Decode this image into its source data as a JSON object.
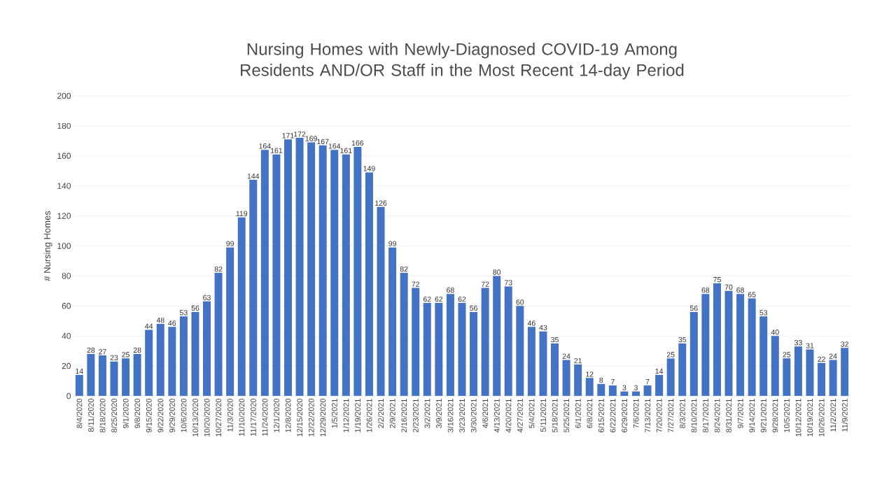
{
  "chart_data": {
    "type": "bar",
    "title": "Nursing Homes with Newly-Diagnosed COVID-19 Among Residents AND/OR Staff in the Most Recent 14-day Period",
    "ylabel": "# Nursing Homes",
    "categories": [
      "8/4/2020",
      "8/11/2020",
      "8/18/2020",
      "8/25/2020",
      "9/1/2020",
      "9/8/2020",
      "9/15/2020",
      "9/22/2020",
      "9/29/2020",
      "10/6/2020",
      "10/13/2020",
      "10/20/2020",
      "10/27/2020",
      "11/3/2020",
      "11/10/2020",
      "11/17/2020",
      "11/24/2020",
      "12/1/2020",
      "12/8/2020",
      "12/15/2020",
      "12/22/2020",
      "12/29/2020",
      "1/5/2021",
      "1/12/2021",
      "1/19/2021",
      "1/26/2021",
      "2/2/2021",
      "2/9/2021",
      "2/16/2021",
      "2/23/2021",
      "3/2/2021",
      "3/9/2021",
      "3/16/2021",
      "3/23/2021",
      "3/30/2021",
      "4/6/2021",
      "4/13/2021",
      "4/20/2021",
      "4/27/2021",
      "5/4/2021",
      "5/11/2021",
      "5/18/2021",
      "5/25/2021",
      "6/1/2021",
      "6/8/2021",
      "6/15/2021",
      "6/22/2021",
      "6/29/2021",
      "7/6/2021",
      "7/13/2021",
      "7/20/2021",
      "7/27/2021",
      "8/3/2021",
      "8/10/2021",
      "8/17/2021",
      "8/24/2021",
      "8/31/2021",
      "9/7/2021",
      "9/14/2021",
      "9/21/2021",
      "9/28/2021",
      "10/5/2021",
      "10/12/2021",
      "10/19/2021",
      "10/26/2021",
      "11/2/2021",
      "11/9/2021"
    ],
    "values": [
      14,
      28,
      27,
      23,
      25,
      28,
      44,
      48,
      46,
      53,
      56,
      63,
      82,
      99,
      119,
      144,
      164,
      161,
      171,
      172,
      169,
      167,
      164,
      161,
      166,
      149,
      126,
      99,
      82,
      72,
      62,
      62,
      68,
      62,
      56,
      72,
      80,
      73,
      60,
      46,
      43,
      35,
      24,
      21,
      12,
      8,
      7,
      3,
      3,
      7,
      14,
      25,
      35,
      56,
      68,
      75,
      70,
      68,
      65,
      53,
      40,
      25,
      33,
      31,
      22,
      24,
      32
    ],
    "color": "#4472c4",
    "data_labels": true,
    "grid": "y",
    "ylim": [
      0,
      200
    ],
    "yticks": [
      0,
      20,
      40,
      60,
      80,
      100,
      120,
      140,
      160,
      180,
      200
    ]
  }
}
